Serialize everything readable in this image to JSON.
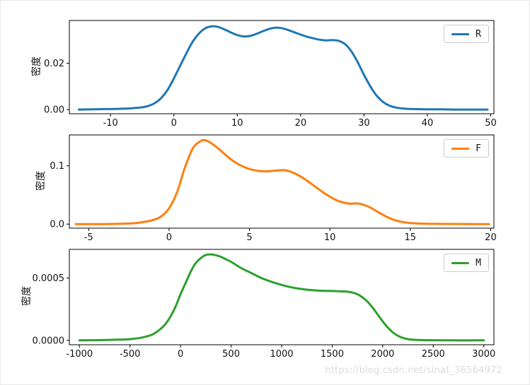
{
  "figure": {
    "background": "#ffffff",
    "watermark": "https://blog.csdn.net/sinat_36564972"
  },
  "chart_data": [
    {
      "type": "line",
      "kind": "kde-density",
      "title": "",
      "xlabel": "",
      "ylabel": "密度",
      "xlim": [
        -16.5,
        50.5
      ],
      "ylim": [
        -0.0018,
        0.0385
      ],
      "xticks": [
        -10,
        0,
        10,
        20,
        30,
        40,
        50
      ],
      "xtick_labels": [
        "-10",
        "0",
        "10",
        "20",
        "30",
        "40",
        "50"
      ],
      "yticks": [
        0,
        0.02
      ],
      "ytick_labels": [
        "0.00",
        "0.02"
      ],
      "grid": false,
      "legend_position": "upper right",
      "series": [
        {
          "name": "R",
          "color": "#1f77b4",
          "x": [
            -15,
            -13,
            -11,
            -9,
            -7,
            -6,
            -5,
            -4,
            -3,
            -2,
            -1,
            0,
            1,
            2,
            3,
            4,
            5,
            6,
            7,
            8,
            9,
            10,
            11,
            12,
            13,
            14,
            15,
            16,
            17,
            18,
            19,
            20,
            21,
            22,
            23,
            24,
            25,
            26,
            27,
            28,
            29,
            30,
            31,
            32,
            33,
            34,
            35,
            36,
            37,
            38,
            40,
            42,
            44,
            46,
            48,
            49.5
          ],
          "y": [
            0.0,
            0.0001,
            0.0002,
            0.0003,
            0.0005,
            0.0007,
            0.001,
            0.0016,
            0.0028,
            0.005,
            0.0085,
            0.0135,
            0.019,
            0.0245,
            0.0295,
            0.033,
            0.0352,
            0.036,
            0.0357,
            0.0346,
            0.0333,
            0.0322,
            0.0316,
            0.0318,
            0.0327,
            0.0338,
            0.0348,
            0.0354,
            0.0352,
            0.0344,
            0.0334,
            0.0324,
            0.0315,
            0.0308,
            0.0302,
            0.0299,
            0.03,
            0.0297,
            0.0283,
            0.0252,
            0.0205,
            0.015,
            0.01,
            0.006,
            0.0033,
            0.0017,
            0.0009,
            0.0005,
            0.0003,
            0.0002,
            0.0001,
            0.0001,
            0.0,
            0.0,
            0.0,
            0.0
          ]
        }
      ]
    },
    {
      "type": "line",
      "kind": "kde-density",
      "title": "",
      "xlabel": "",
      "ylabel": "密度",
      "xlim": [
        -6.2,
        20.2
      ],
      "ylim": [
        -0.007,
        0.153
      ],
      "xticks": [
        -5,
        0,
        5,
        10,
        15,
        20
      ],
      "xtick_labels": [
        "-5",
        "0",
        "5",
        "10",
        "15",
        "20"
      ],
      "yticks": [
        0,
        0.1
      ],
      "ytick_labels": [
        "0.0",
        "0.1"
      ],
      "grid": false,
      "legend_position": "upper right",
      "series": [
        {
          "name": "F",
          "color": "#ff7f0e",
          "x": [
            -5.8,
            -5,
            -4,
            -3,
            -2.5,
            -2,
            -1.5,
            -1,
            -0.5,
            0,
            0.5,
            1,
            1.5,
            2,
            2.2,
            2.5,
            3,
            3.5,
            4,
            4.5,
            5,
            5.5,
            6,
            6.5,
            7,
            7.2,
            7.5,
            8,
            8.5,
            9,
            9.5,
            10,
            10.5,
            11,
            11.3,
            11.6,
            12,
            12.5,
            13,
            13.5,
            14,
            14.5,
            15,
            15.5,
            16,
            17,
            18,
            19,
            19.9
          ],
          "y": [
            0.0,
            0.0,
            0.0,
            0.0005,
            0.001,
            0.002,
            0.004,
            0.007,
            0.013,
            0.027,
            0.055,
            0.098,
            0.131,
            0.143,
            0.144,
            0.141,
            0.131,
            0.119,
            0.108,
            0.1,
            0.0945,
            0.0915,
            0.0905,
            0.0915,
            0.0925,
            0.0925,
            0.0905,
            0.0845,
            0.076,
            0.066,
            0.056,
            0.047,
            0.04,
            0.036,
            0.035,
            0.0355,
            0.034,
            0.0285,
            0.0205,
            0.013,
            0.0072,
            0.0038,
            0.0019,
            0.001,
            0.0006,
            0.0003,
            0.0001,
            0.0,
            0.0
          ]
        }
      ]
    },
    {
      "type": "line",
      "kind": "kde-density",
      "title": "",
      "xlabel": "",
      "ylabel": "密度",
      "xlim": [
        -1100,
        3100
      ],
      "ylim": [
        -3.5e-05,
        0.00073
      ],
      "xticks": [
        -1000,
        -500,
        0,
        500,
        1000,
        1500,
        2000,
        2500,
        3000
      ],
      "xtick_labels": [
        "-1000",
        "-500",
        "0",
        "500",
        "1000",
        "1500",
        "2000",
        "2500",
        "3000"
      ],
      "yticks": [
        0,
        0.0005
      ],
      "ytick_labels": [
        "0.0000",
        "0.0005"
      ],
      "grid": false,
      "legend_position": "upper right",
      "series": [
        {
          "name": "M",
          "color": "#2ca02c",
          "x": [
            -1000,
            -800,
            -600,
            -500,
            -400,
            -300,
            -250,
            -200,
            -150,
            -100,
            -50,
            0,
            50,
            100,
            150,
            200,
            250,
            300,
            350,
            400,
            450,
            500,
            600,
            700,
            800,
            900,
            1000,
            1100,
            1200,
            1300,
            1400,
            1500,
            1600,
            1650,
            1700,
            1750,
            1800,
            1850,
            1900,
            1950,
            2000,
            2050,
            2100,
            2150,
            2200,
            2250,
            2300,
            2400,
            2500,
            2700,
            2900,
            3000
          ],
          "y": [
            0.0,
            2e-06,
            6e-06,
            1e-05,
            2e-05,
            4e-05,
            6e-05,
            9e-05,
            0.00013,
            0.00019,
            0.00027,
            0.00037,
            0.00046,
            0.00055,
            0.00062,
            0.00066,
            0.000685,
            0.00069,
            0.000683,
            0.00067,
            0.00065,
            0.00063,
            0.00058,
            0.00054,
            0.0005,
            0.00047,
            0.000445,
            0.000425,
            0.000412,
            0.000403,
            0.000398,
            0.000396,
            0.000393,
            0.00039,
            0.000383,
            0.00037,
            0.000345,
            0.00031,
            0.000262,
            0.000208,
            0.000152,
            0.000103,
            6.4e-05,
            3.7e-05,
            2e-05,
            1e-05,
            5e-06,
            2e-06,
            1e-06,
            0.0,
            0.0,
            0.0
          ]
        }
      ]
    }
  ]
}
